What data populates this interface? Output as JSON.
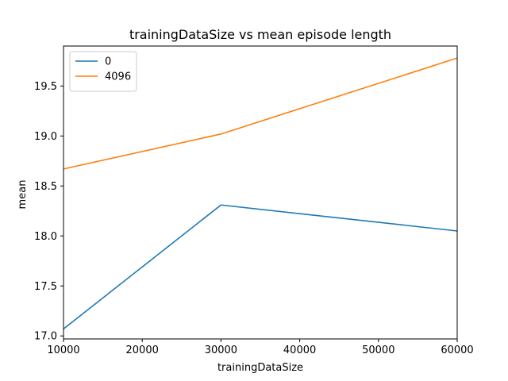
{
  "chart_data": {
    "type": "line",
    "title": "trainingDataSize vs mean episode length",
    "xlabel": "trainingDataSize",
    "ylabel": "mean",
    "x": [
      10000,
      30000,
      60000
    ],
    "xlim": [
      10000,
      60000
    ],
    "ylim": [
      16.97,
      19.9
    ],
    "xticks": [
      10000,
      20000,
      30000,
      40000,
      50000,
      60000
    ],
    "xtick_labels": [
      "10000",
      "20000",
      "30000",
      "40000",
      "50000",
      "60000"
    ],
    "yticks": [
      17.0,
      17.5,
      18.0,
      18.5,
      19.0,
      19.5
    ],
    "ytick_labels": [
      "17.0",
      "17.5",
      "18.0",
      "18.5",
      "19.0",
      "19.5"
    ],
    "grid": false,
    "legend_position": "top-left",
    "series": [
      {
        "name": "0",
        "color": "#1f77b4",
        "values": [
          17.07,
          18.31,
          18.05
        ]
      },
      {
        "name": "4096",
        "color": "#ff7f0e",
        "values": [
          18.67,
          19.02,
          19.78
        ]
      }
    ]
  }
}
